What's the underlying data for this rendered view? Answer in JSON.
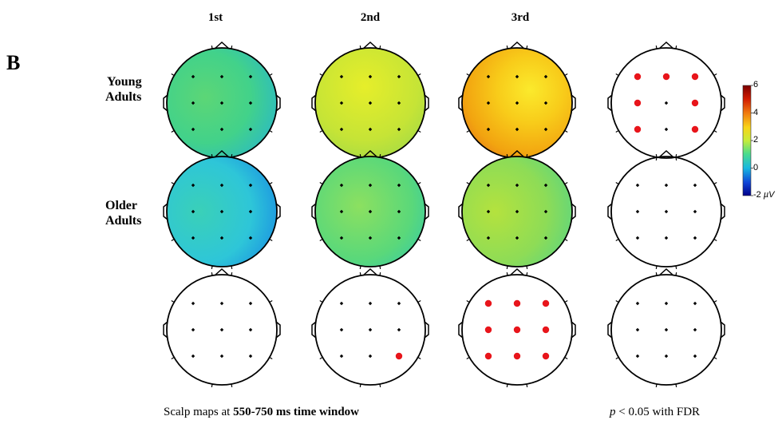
{
  "panel_label": "B",
  "columns": [
    "1st",
    "2nd",
    "3rd"
  ],
  "rows": [
    {
      "line1": "Young",
      "line2": "Adults"
    },
    {
      "line1": "Older",
      "line2": "Adults"
    }
  ],
  "caption_left": {
    "prefix": "Scalp maps at ",
    "bold": "550-750 ms time window"
  },
  "caption_right": {
    "italic": "p",
    "rest": " < 0.05 with FDR"
  },
  "colorbar": {
    "ticks": [
      "6",
      "4",
      "2",
      "0",
      "-2"
    ],
    "unit": "µV",
    "range": [
      -2,
      6
    ],
    "colors": [
      "#7a0000",
      "#d01a00",
      "#f07a10",
      "#f8d418",
      "#c6ec3a",
      "#4adc8c",
      "#18b8e0",
      "#1046d8",
      "#00008a"
    ]
  },
  "chart_data": {
    "type": "heatmap",
    "description_of_layout": null,
    "unit": "µV",
    "colorbar_range": [
      -2,
      6
    ],
    "maps": [
      {
        "group": "Young Adults",
        "column": "1st",
        "approx_mean_uV": 1.8
      },
      {
        "group": "Young Adults",
        "column": "2nd",
        "approx_mean_uV": 3.2
      },
      {
        "group": "Young Adults",
        "column": "3rd",
        "approx_mean_uV": 4.3
      },
      {
        "group": "Older Adults",
        "column": "1st",
        "approx_mean_uV": 0.8
      },
      {
        "group": "Older Adults",
        "column": "2nd",
        "approx_mean_uV": 2.0
      },
      {
        "group": "Older Adults",
        "column": "3rd",
        "approx_mean_uV": 2.6
      }
    ],
    "significance_maps": [
      {
        "position": "row1-col4",
        "significant_electrodes": [
          1,
          2,
          3,
          4,
          6,
          7,
          9
        ]
      },
      {
        "position": "row2-col4",
        "significant_electrodes": []
      },
      {
        "position": "row3-col1",
        "significant_electrodes": []
      },
      {
        "position": "row3-col2",
        "significant_electrodes": [
          9
        ]
      },
      {
        "position": "row3-col3",
        "significant_electrodes": [
          1,
          2,
          3,
          4,
          5,
          6,
          7,
          8,
          9
        ]
      },
      {
        "position": "row3-col4",
        "significant_electrodes": []
      }
    ]
  }
}
